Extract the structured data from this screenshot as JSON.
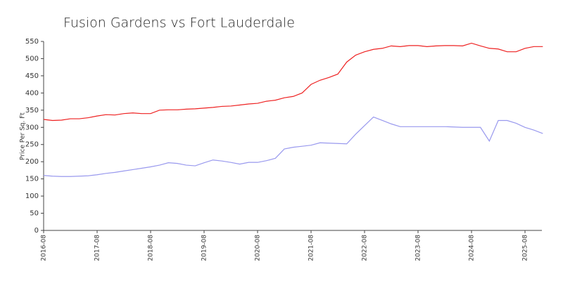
{
  "chart_data": {
    "type": "line",
    "title": "Fusion Gardens vs Fort Lauderdale",
    "y_label": "Price Per Sq. Ft",
    "x": [
      "2016-08",
      "2016-10",
      "2016-12",
      "2017-02",
      "2017-04",
      "2017-06",
      "2017-08",
      "2017-10",
      "2017-12",
      "2018-02",
      "2018-04",
      "2018-06",
      "2018-08",
      "2018-10",
      "2018-12",
      "2019-02",
      "2019-04",
      "2019-06",
      "2019-08",
      "2019-10",
      "2019-12",
      "2020-02",
      "2020-04",
      "2020-06",
      "2020-08",
      "2020-10",
      "2020-12",
      "2021-02",
      "2021-04",
      "2021-06",
      "2021-08",
      "2021-10",
      "2021-12",
      "2022-02",
      "2022-04",
      "2022-06",
      "2022-08",
      "2022-10",
      "2022-12",
      "2023-02",
      "2023-04",
      "2023-06",
      "2023-08",
      "2023-10",
      "2023-12",
      "2024-02",
      "2024-04",
      "2024-06",
      "2024-08",
      "2024-10",
      "2024-12",
      "2025-02",
      "2025-04",
      "2025-06",
      "2025-08",
      "2025-10",
      "2025-12"
    ],
    "series": [
      {
        "color": "#ee2222",
        "values": [
          323,
          320,
          321,
          325,
          325,
          328,
          333,
          337,
          336,
          340,
          342,
          340,
          340,
          350,
          351,
          351,
          353,
          354,
          356,
          358,
          361,
          362,
          365,
          368,
          370,
          376,
          379,
          386,
          390,
          400,
          425,
          437,
          445,
          455,
          490,
          510,
          520,
          527,
          530,
          537,
          535,
          538,
          538,
          535,
          537,
          538,
          538,
          537,
          545,
          537,
          530,
          528,
          520,
          520,
          530,
          535,
          535
        ]
      },
      {
        "color": "#9999ee",
        "values": [
          160,
          158,
          157,
          157,
          158,
          159,
          162,
          166,
          169,
          173,
          177,
          181,
          185,
          190,
          197,
          195,
          190,
          188,
          197,
          205,
          202,
          198,
          193,
          198,
          198,
          203,
          210,
          237,
          242,
          245,
          248,
          255,
          254,
          253,
          252,
          280,
          305,
          330,
          320,
          310,
          302,
          302,
          302,
          302,
          302,
          302,
          301,
          300,
          300,
          300,
          260,
          320,
          320,
          312,
          300,
          292,
          282
        ]
      }
    ],
    "xticks": [
      "2016-08",
      "2017-08",
      "2018-08",
      "2019-08",
      "2020-08",
      "2021-08",
      "2022-08",
      "2023-08",
      "2024-08",
      "2025-08"
    ],
    "ylim": [
      0,
      550
    ],
    "yticks": [
      0,
      50,
      100,
      150,
      200,
      250,
      300,
      350,
      400,
      450,
      500,
      550
    ],
    "grid": false
  }
}
